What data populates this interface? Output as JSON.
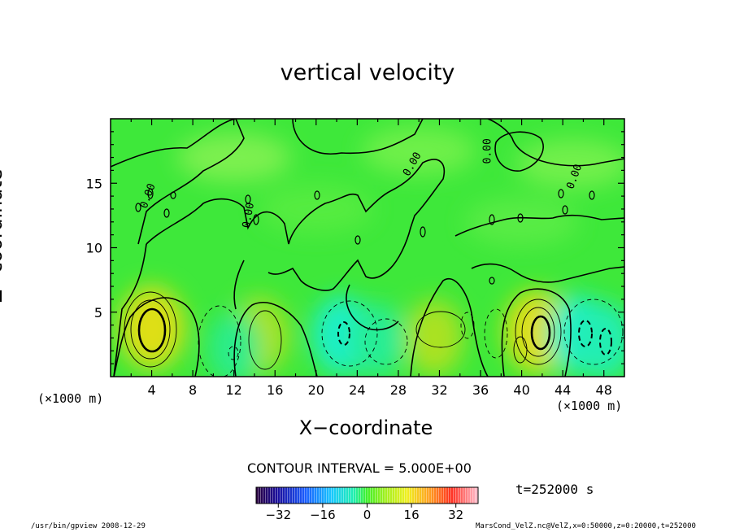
{
  "chart_data": {
    "type": "heatmap",
    "title": "vertical velocity",
    "xlabel": "X−coordinate",
    "ylabel": "Z−coordinate",
    "x_unit_left": "(×1000 m)",
    "x_unit_right": "(×1000 m)",
    "xlim": [
      0,
      50
    ],
    "ylim": [
      0,
      20
    ],
    "x_ticks": [
      4,
      8,
      12,
      16,
      20,
      24,
      28,
      32,
      36,
      40,
      44,
      48
    ],
    "y_ticks": [
      5,
      10,
      15
    ],
    "contour_interval": "CONTOUR INTERVAL = 5.000E+00",
    "contour_labels": [
      "0.00",
      "0.00",
      "0.00",
      "0.00",
      "0.00"
    ],
    "colorbar": {
      "range": [
        -40,
        40
      ],
      "ticks": [
        -32,
        -16,
        0,
        16,
        32
      ],
      "tick_labels": [
        "−32",
        "−16",
        "0",
        "16",
        "32"
      ]
    },
    "features": [
      {
        "x": 4.0,
        "z": 3.8,
        "value": 18,
        "sign": "positive"
      },
      {
        "x": 14.5,
        "z": 3.2,
        "value": 12,
        "sign": "positive"
      },
      {
        "x": 12.0,
        "z": 2.2,
        "value": -8,
        "sign": "negative"
      },
      {
        "x": 22.5,
        "z": 3.2,
        "value": -14,
        "sign": "negative"
      },
      {
        "x": 26.0,
        "z": 2.8,
        "value": -9,
        "sign": "negative"
      },
      {
        "x": 31.5,
        "z": 3.0,
        "value": 12,
        "sign": "positive"
      },
      {
        "x": 41.5,
        "z": 3.5,
        "value": 18,
        "sign": "positive"
      },
      {
        "x": 45.5,
        "z": 3.3,
        "value": -14,
        "sign": "negative"
      },
      {
        "x": 48.0,
        "z": 2.8,
        "value": -12,
        "sign": "negative"
      }
    ],
    "time": "t=252000 s"
  },
  "footer": {
    "left": "/usr/bin/gpview  2008-12-29",
    "right": "MarsCond_VelZ.nc@VelZ,x=0:50000,z=0:20000,t=252000"
  }
}
